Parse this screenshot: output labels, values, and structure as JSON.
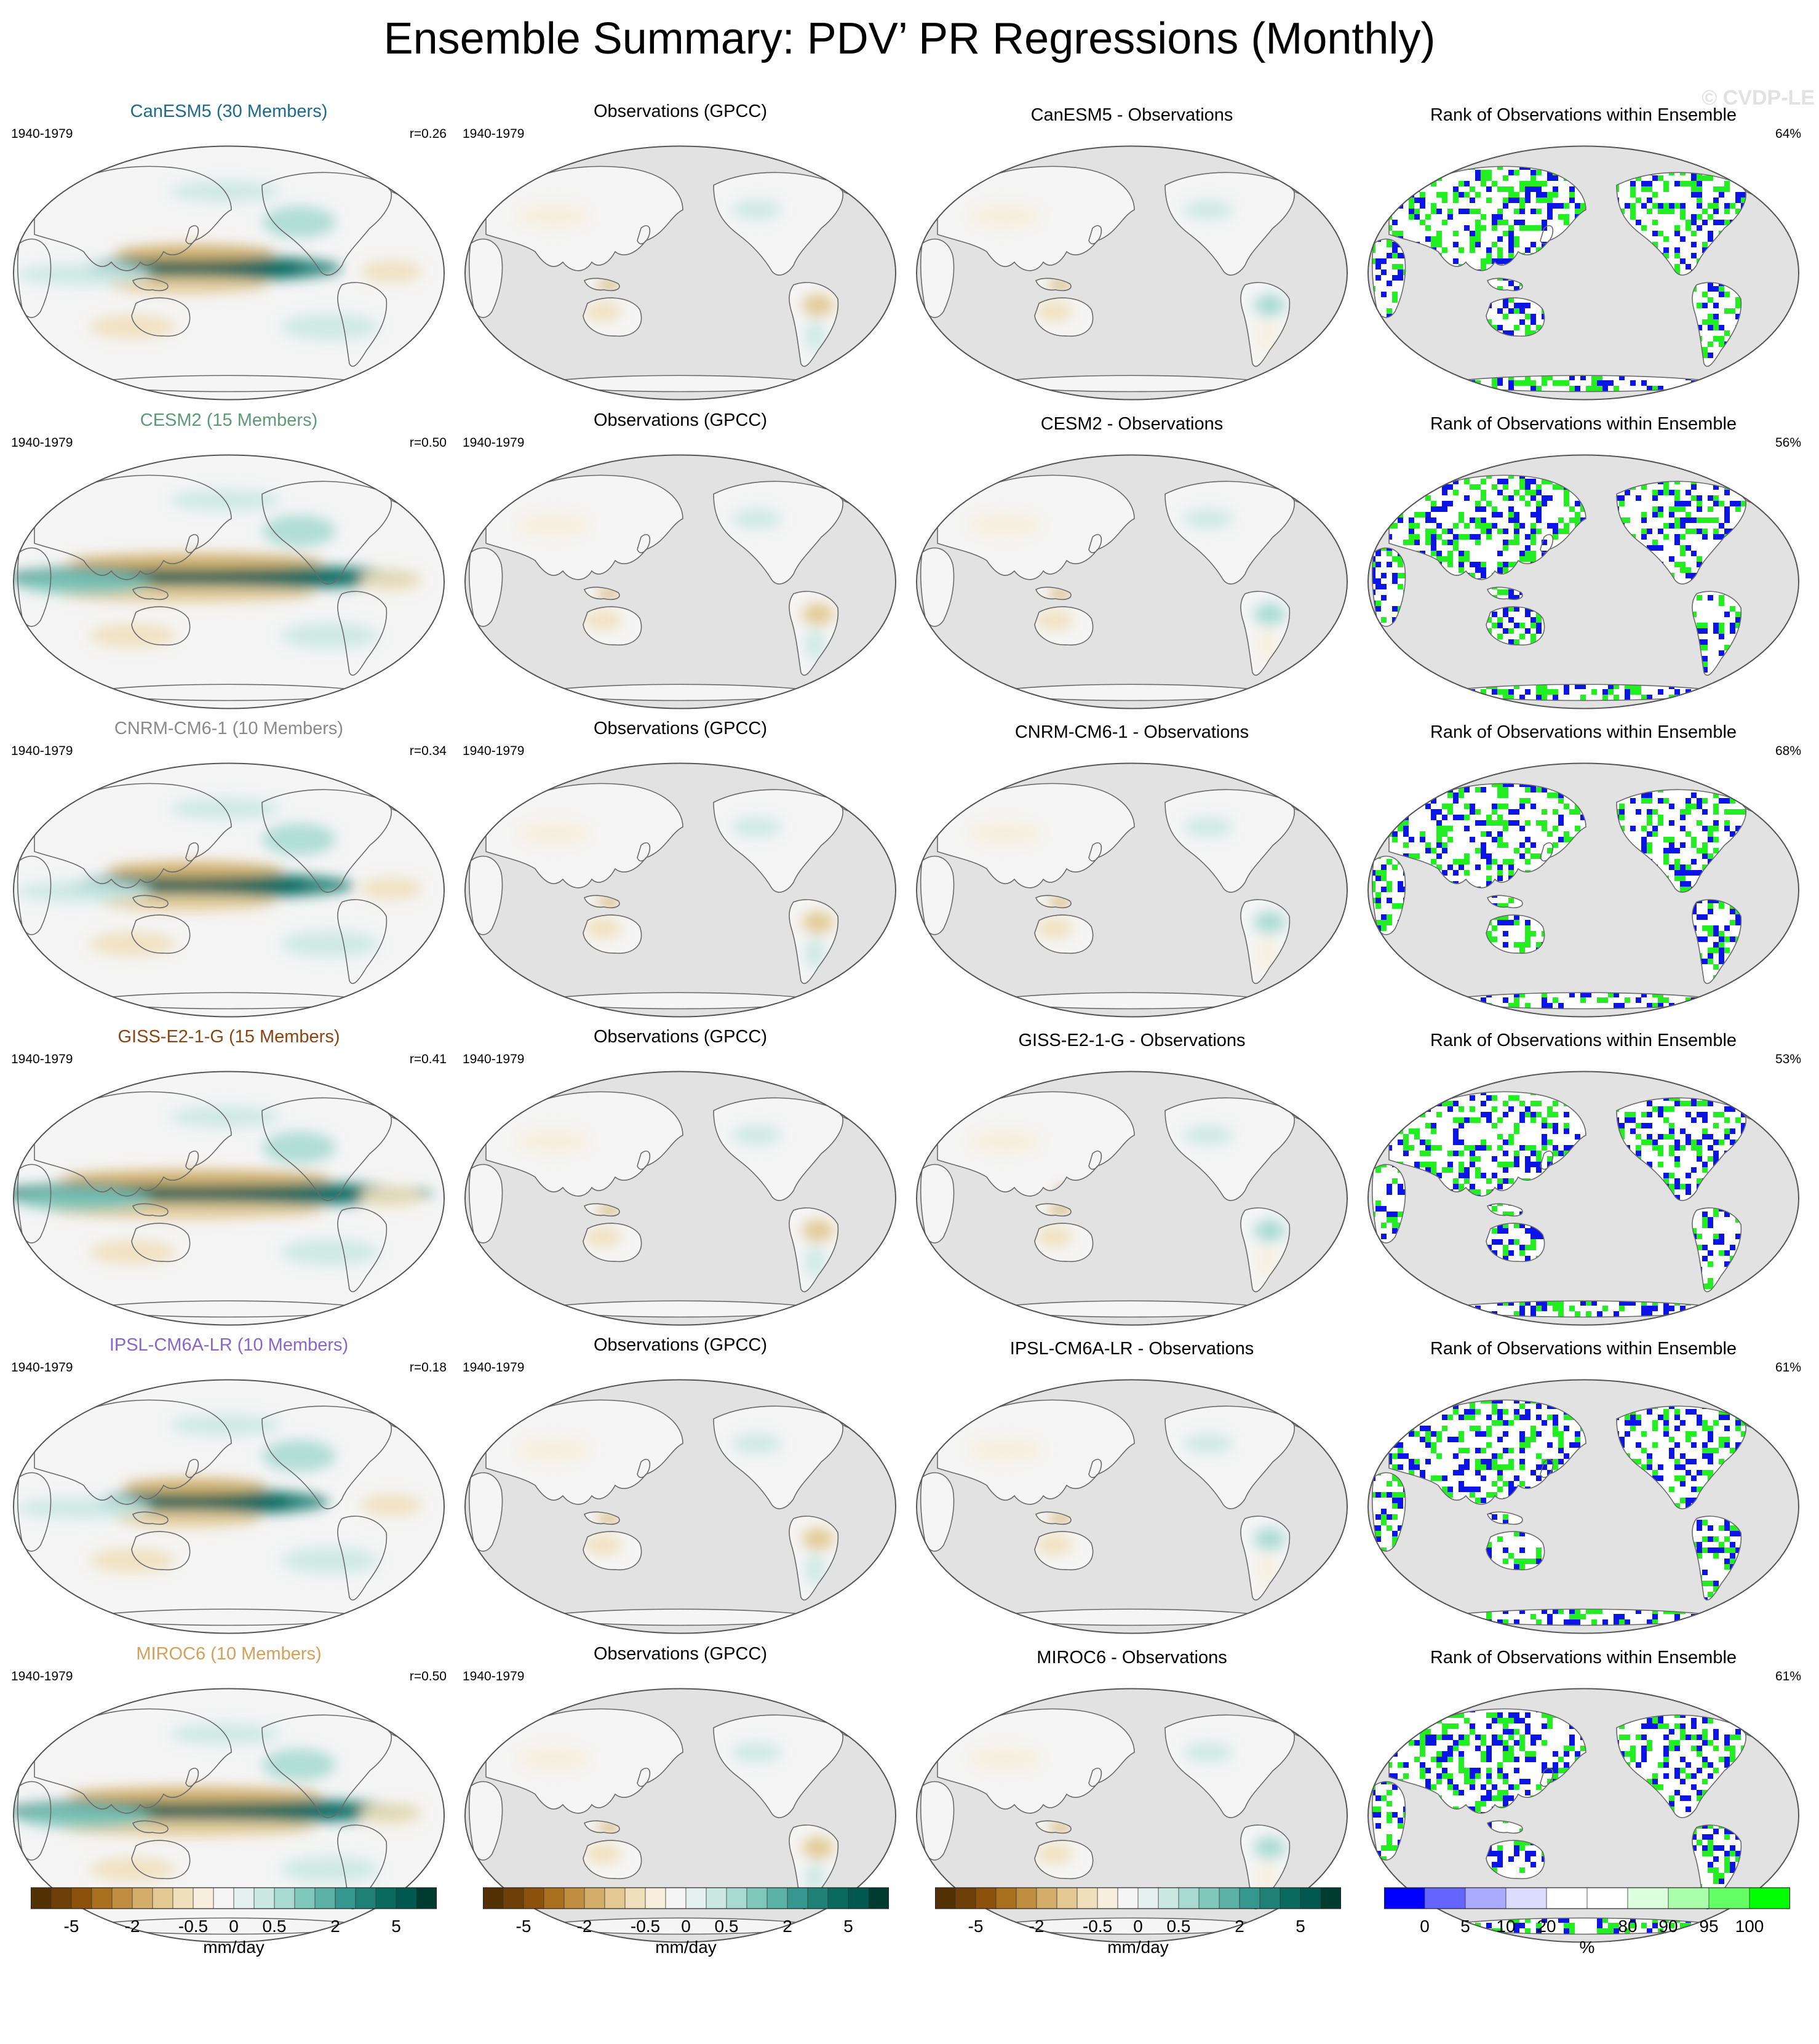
{
  "title": "Ensemble Summary: PDV’ PR Regressions (Monthly)",
  "watermark": "© CVDP-LE",
  "rows": [
    {
      "model_title": "CanESM5 (30 Members)",
      "title_color": "#1e6b8f",
      "period": "1940-1979",
      "r": "r=0.26",
      "obs_title": "Observations (GPCC)",
      "obs_period": "1940-1979",
      "diff_title": "CanESM5 - Observations",
      "rank_title": "Rank of Observations within Ensemble",
      "rank_pct": "64%"
    },
    {
      "model_title": "CESM2 (15 Members)",
      "title_color": "#5d9a78",
      "period": "1940-1979",
      "r": "r=0.50",
      "obs_title": "Observations (GPCC)",
      "obs_period": "1940-1979",
      "diff_title": "CESM2 - Observations",
      "rank_title": "Rank of Observations within Ensemble",
      "rank_pct": "56%"
    },
    {
      "model_title": "CNRM-CM6-1 (10 Members)",
      "title_color": "#8a8a8a",
      "period": "1940-1979",
      "r": "r=0.34",
      "obs_title": "Observations (GPCC)",
      "obs_period": "1940-1979",
      "diff_title": "CNRM-CM6-1 - Observations",
      "rank_title": "Rank of Observations within Ensemble",
      "rank_pct": "68%"
    },
    {
      "model_title": "GISS-E2-1-G (15 Members)",
      "title_color": "#8b4513",
      "period": "1940-1979",
      "r": "r=0.41",
      "obs_title": "Observations (GPCC)",
      "obs_period": "1940-1979",
      "diff_title": "GISS-E2-1-G - Observations",
      "rank_title": "Rank of Observations within Ensemble",
      "rank_pct": "53%"
    },
    {
      "model_title": "IPSL-CM6A-LR (10 Members)",
      "title_color": "#8866cc",
      "period": "1940-1979",
      "r": "r=0.18",
      "obs_title": "Observations (GPCC)",
      "obs_period": "1940-1979",
      "diff_title": "IPSL-CM6A-LR - Observations",
      "rank_title": "Rank of Observations within Ensemble",
      "rank_pct": "61%"
    },
    {
      "model_title": "MIROC6 (10 Members)",
      "title_color": "#d4a05a",
      "period": "1940-1979",
      "r": "r=0.50",
      "obs_title": "Observations (GPCC)",
      "obs_period": "1940-1979",
      "diff_title": "MIROC6 - Observations",
      "rank_title": "Rank of Observations within Ensemble",
      "rank_pct": "61%"
    }
  ],
  "colorbars": [
    {
      "ticks": [
        "-5",
        "-2",
        "-0.5",
        "0",
        "0.5",
        "2",
        "5"
      ],
      "label": "mm/day"
    },
    {
      "ticks": [
        "-5",
        "-2",
        "-0.5",
        "0",
        "0.5",
        "2",
        "5"
      ],
      "label": "mm/day"
    },
    {
      "ticks": [
        "-5",
        "-2",
        "-0.5",
        "0",
        "0.5",
        "2",
        "5"
      ],
      "label": "mm/day"
    },
    {
      "ticks": [
        "0",
        "5",
        "10",
        "20",
        "80",
        "90",
        "95",
        "100"
      ],
      "label": "%"
    }
  ],
  "colors": {
    "pr_scale": [
      "#543005",
      "#6f3f0a",
      "#8c510a",
      "#a8701f",
      "#bf8e40",
      "#d2ae6a",
      "#e3c892",
      "#f0dfbb",
      "#f7eedd",
      "#f5f5f5",
      "#e4f1ef",
      "#cbe8e3",
      "#a8dad1",
      "#80c7bb",
      "#5bb1a3",
      "#35978f",
      "#1f8076",
      "#0a6a5e",
      "#01584f",
      "#003c30"
    ],
    "rank_scale": [
      "#0000ff",
      "#6464ff",
      "#aaaaff",
      "#dcdcff",
      "#ffffff",
      "#ffffff",
      "#dcffdc",
      "#aaffaa",
      "#64ff64",
      "#00ff00"
    ],
    "rank_low": "#0a14e6",
    "rank_high": "#22ee22",
    "land_mask": "#e2e2e2",
    "coast": "#6a6a6a"
  }
}
